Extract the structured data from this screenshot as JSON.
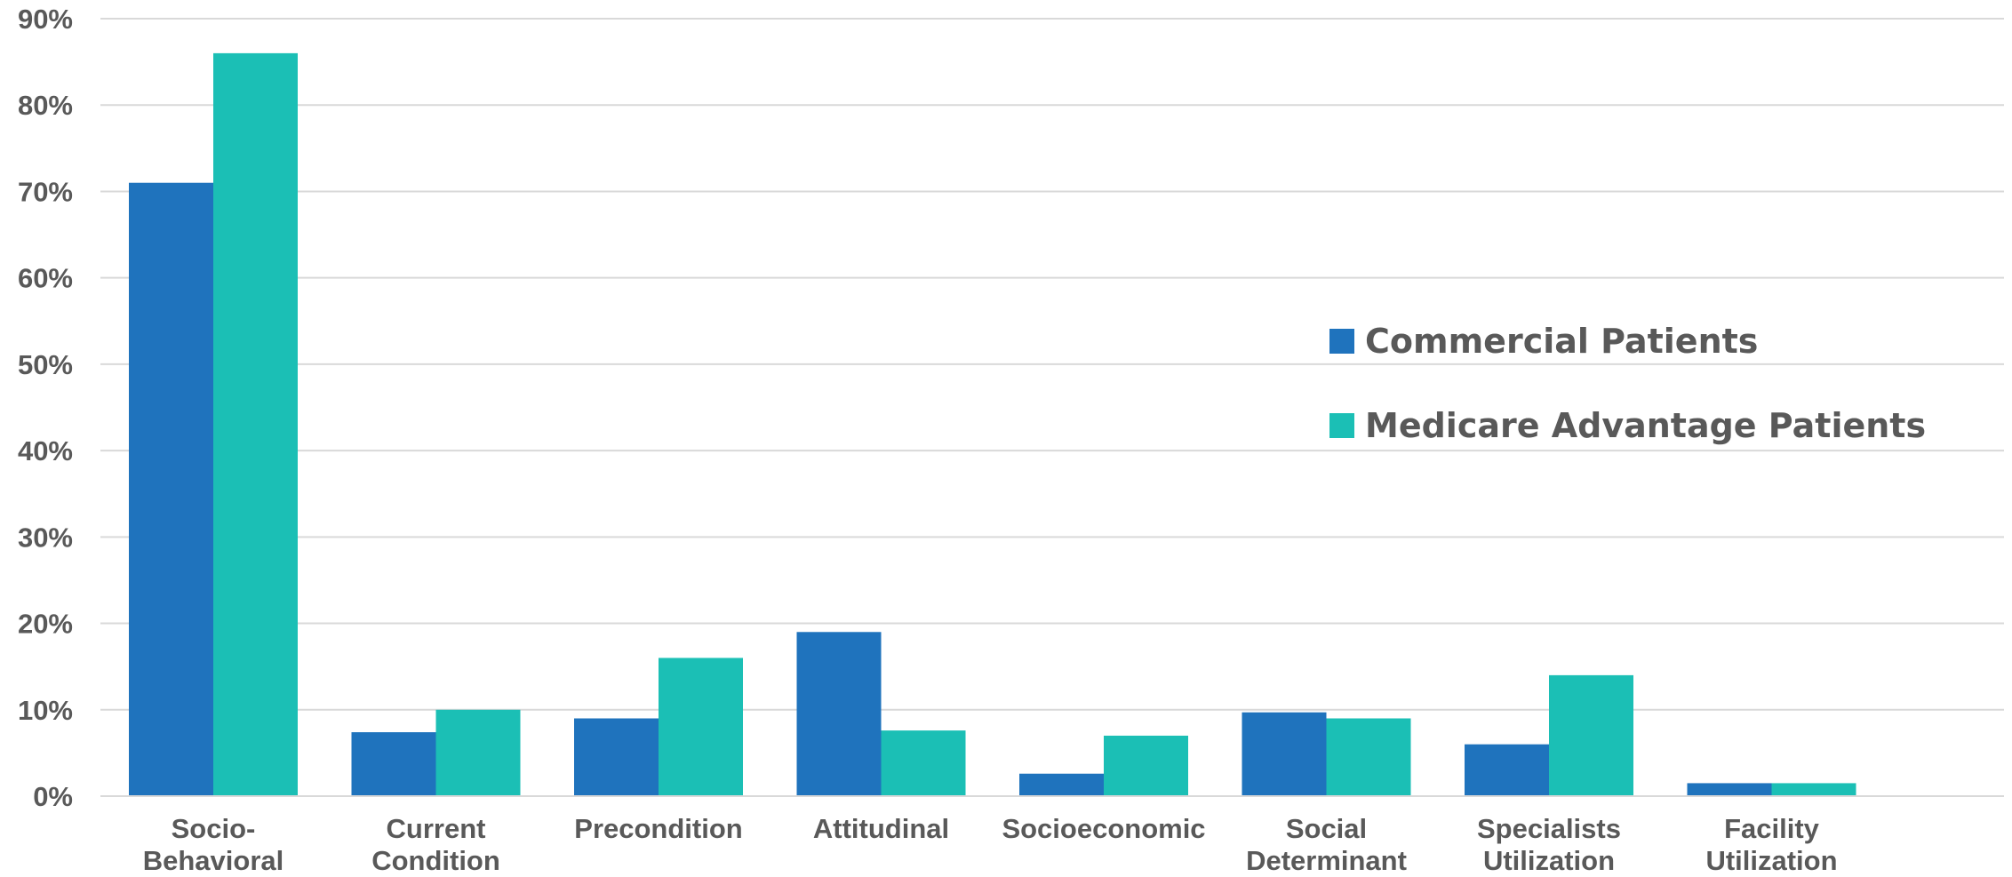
{
  "chart_data": {
    "type": "bar",
    "title": "",
    "xlabel": "",
    "ylabel": "",
    "ylim": [
      0,
      90
    ],
    "y_tick_values": [
      0,
      10,
      20,
      30,
      40,
      50,
      60,
      70,
      80,
      90
    ],
    "y_tick_labels": [
      "0%",
      "10%",
      "20%",
      "30%",
      "40%",
      "50%",
      "60%",
      "70%",
      "80%",
      "90%"
    ],
    "grid": true,
    "legend_position": "right",
    "categories": [
      [
        "Socio-",
        "Behavioral"
      ],
      [
        "Current",
        "Condition"
      ],
      [
        "Precondition"
      ],
      [
        "Attitudinal"
      ],
      [
        "Socioeconomic"
      ],
      [
        "Social",
        "Determinant"
      ],
      [
        "Specialists",
        "Utilization"
      ],
      [
        "Facility",
        "Utilization"
      ]
    ],
    "series": [
      {
        "name": "Commercial Patients",
        "color": "#1f73bd",
        "values": [
          71,
          7.4,
          9,
          19,
          2.6,
          9.7,
          6,
          1.5
        ]
      },
      {
        "name": "Medicare Advantage Patients",
        "color": "#1bbfb5",
        "values": [
          86,
          10,
          16,
          7.6,
          7,
          9,
          14,
          1.5
        ]
      }
    ]
  }
}
